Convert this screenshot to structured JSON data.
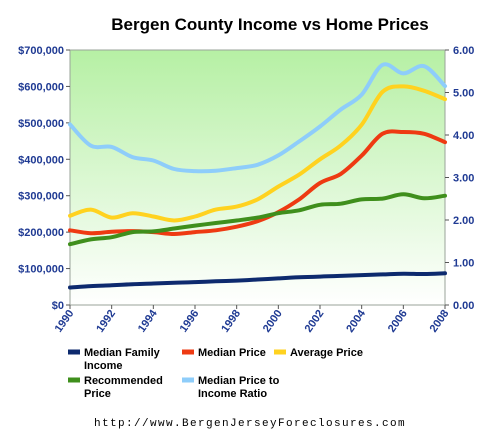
{
  "chart_data": {
    "type": "line",
    "title": "Bergen County Income vs Home Prices",
    "footer": "http://www.BergenJerseyForeclosures.com",
    "x": [
      1990,
      1991,
      1992,
      1993,
      1994,
      1995,
      1996,
      1997,
      1998,
      1999,
      2000,
      2001,
      2002,
      2003,
      2004,
      2005,
      2006,
      2007,
      2008
    ],
    "x_ticks": [
      "1990",
      "1992",
      "1994",
      "1996",
      "1998",
      "2000",
      "2002",
      "2004",
      "2006",
      "2008"
    ],
    "ylim_left": [
      0,
      700000
    ],
    "ylim_right": [
      0,
      6
    ],
    "left_ticks": [
      "$0",
      "$100,000",
      "$200,000",
      "$300,000",
      "$400,000",
      "$500,000",
      "$600,000",
      "$700,000"
    ],
    "right_ticks": [
      "0.00",
      "1.00",
      "2.00",
      "3.00",
      "4.00",
      "5.00",
      "6.00"
    ],
    "background_gradient": [
      "#b6f0a4",
      "#ffffff"
    ],
    "grid": false,
    "series": [
      {
        "name": "Median Family Income",
        "legend_lines": [
          "Median Family",
          "Income"
        ],
        "color": "#0d2a6e",
        "axis": "left",
        "values": [
          48000,
          52000,
          54000,
          57000,
          59000,
          61000,
          63000,
          65000,
          67000,
          70000,
          73000,
          76000,
          78000,
          80000,
          82000,
          84000,
          86000,
          85000,
          87000
        ]
      },
      {
        "name": "Median Price",
        "legend_lines": [
          "Median Price"
        ],
        "color": "#ee3a12",
        "axis": "left",
        "values": [
          205000,
          197000,
          201000,
          203000,
          200000,
          195000,
          200000,
          205000,
          215000,
          230000,
          255000,
          290000,
          335000,
          360000,
          410000,
          470000,
          475000,
          470000,
          447000
        ]
      },
      {
        "name": "Average Price",
        "legend_lines": [
          "Average Price"
        ],
        "color": "#ffd21f",
        "axis": "left",
        "values": [
          245000,
          262000,
          240000,
          252000,
          243000,
          232000,
          243000,
          262000,
          270000,
          290000,
          325000,
          358000,
          400000,
          438000,
          495000,
          585000,
          600000,
          588000,
          565000
        ]
      },
      {
        "name": "Recommended Price",
        "legend_lines": [
          "Recommended",
          "Price"
        ],
        "color": "#3f8f1c",
        "axis": "left",
        "values": [
          167000,
          180000,
          186000,
          200000,
          202000,
          210000,
          218000,
          225000,
          232000,
          240000,
          252000,
          260000,
          275000,
          278000,
          290000,
          292000,
          304000,
          293000,
          300000
        ]
      },
      {
        "name": "Median Price to Income Ratio",
        "legend_lines": [
          "Median Price to",
          "Income Ratio"
        ],
        "color": "#8ecdfa",
        "axis": "right",
        "values": [
          4.25,
          3.75,
          3.72,
          3.48,
          3.4,
          3.2,
          3.15,
          3.16,
          3.22,
          3.3,
          3.52,
          3.85,
          4.2,
          4.6,
          4.95,
          5.65,
          5.45,
          5.62,
          5.15
        ]
      }
    ]
  }
}
